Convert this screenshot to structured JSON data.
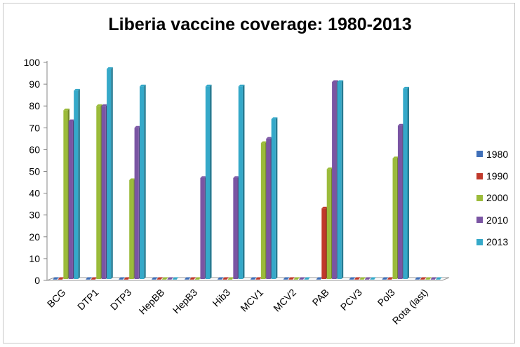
{
  "chart_data": {
    "type": "bar",
    "title": "Liberia vaccine coverage: 1980-2013",
    "xlabel": "",
    "ylabel": "",
    "ylim": [
      0,
      100
    ],
    "yticks": [
      0,
      10,
      20,
      30,
      40,
      50,
      60,
      70,
      80,
      90,
      100
    ],
    "grid": false,
    "legend_position": "right",
    "categories": [
      "BCG",
      "DTP1",
      "DTP3",
      "HepBB",
      "HepB3",
      "Hib3",
      "MCV1",
      "MCV2",
      "PAB",
      "PCV3",
      "Pol3",
      "Rota (last)"
    ],
    "series": [
      {
        "name": "1980",
        "color": "#3f6fb8",
        "values": [
          0,
          0,
          0,
          0,
          0,
          0,
          0,
          0,
          0,
          0,
          0,
          0
        ]
      },
      {
        "name": "1990",
        "color": "#c0392b",
        "values": [
          0,
          0,
          0,
          0,
          0,
          0,
          0,
          0,
          33,
          0,
          0,
          0
        ]
      },
      {
        "name": "2000",
        "color": "#9bbb3a",
        "values": [
          78,
          80,
          46,
          0,
          0,
          0,
          63,
          0,
          51,
          0,
          56,
          0
        ]
      },
      {
        "name": "2010",
        "color": "#7a55a3",
        "values": [
          73,
          80,
          70,
          0,
          47,
          47,
          65,
          0,
          91,
          0,
          71,
          0
        ]
      },
      {
        "name": "2013",
        "color": "#35a9c9",
        "values": [
          87,
          97,
          89,
          0,
          89,
          89,
          74,
          0,
          91,
          0,
          88,
          0
        ]
      }
    ]
  }
}
